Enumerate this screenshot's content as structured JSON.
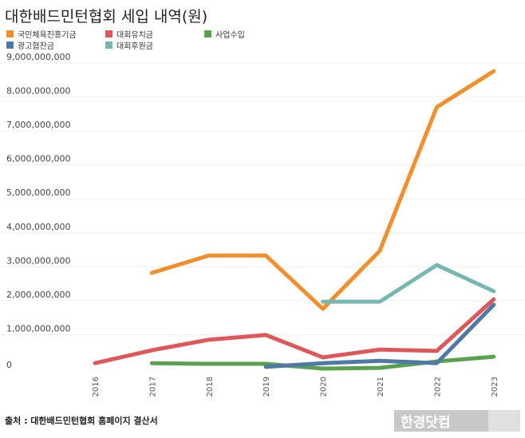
{
  "chart_data": {
    "type": "line",
    "title": "대한배드민턴협회 세입 내역(원)",
    "x": [
      "2016",
      "2017",
      "2018",
      "2019",
      "2020",
      "2021",
      "2022",
      "2023"
    ],
    "ylim": [
      0,
      9000000000
    ],
    "yticks": [
      "0",
      "1,000,000,000",
      "2,000,000,000",
      "3,000,000,000",
      "4,000,000,000",
      "5,000,000,000",
      "6,000,000,000",
      "7,000,000,000",
      "8,000,000,000",
      "9,000,000,000"
    ],
    "grid": true,
    "legend_position": "top-left",
    "series": [
      {
        "name": "국민체육진흥기금",
        "color": "#f28e2b",
        "values": [
          null,
          2820000000,
          3330000000,
          3330000000,
          1760000000,
          3470000000,
          7700000000,
          8760000000
        ]
      },
      {
        "name": "대회유치금",
        "color": "#e15759",
        "values": [
          160000000,
          540000000,
          850000000,
          990000000,
          330000000,
          560000000,
          520000000,
          2040000000
        ]
      },
      {
        "name": "사업수입",
        "color": "#59a14f",
        "values": [
          null,
          160000000,
          140000000,
          140000000,
          0,
          20000000,
          210000000,
          350000000
        ]
      },
      {
        "name": "광고협찬금",
        "color": "#4e79a7",
        "values": [
          null,
          null,
          null,
          50000000,
          160000000,
          230000000,
          160000000,
          1880000000
        ]
      },
      {
        "name": "대회후원금",
        "color": "#76b7b2",
        "values": [
          null,
          null,
          null,
          null,
          1970000000,
          1970000000,
          3050000000,
          2280000000
        ]
      }
    ]
  },
  "source": "출처 : 대한배드민턴협회 홈페이지 결산서",
  "logo": "한경닷컴"
}
